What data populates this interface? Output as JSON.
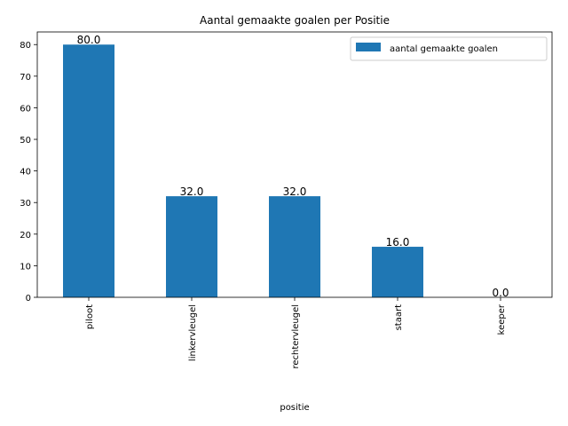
{
  "chart_data": {
    "type": "bar",
    "title": "Aantal gemaakte goalen per Positie",
    "xlabel": "positie",
    "ylabel": "",
    "categories": [
      "piloot",
      "linkervleugel",
      "rechtervleugel",
      "staart",
      "keeper"
    ],
    "series": [
      {
        "name": "aantal gemaakte goalen",
        "values": [
          80.0,
          32.0,
          32.0,
          16.0,
          0.0
        ],
        "color": "#1f77b4"
      }
    ],
    "data_labels": [
      "80.0",
      "32.0",
      "32.0",
      "16.0",
      "0.0"
    ],
    "ylim": [
      0,
      84
    ],
    "yticks": [
      0,
      10,
      20,
      30,
      40,
      50,
      60,
      70,
      80
    ],
    "grid": false,
    "legend_position": "top-right"
  }
}
